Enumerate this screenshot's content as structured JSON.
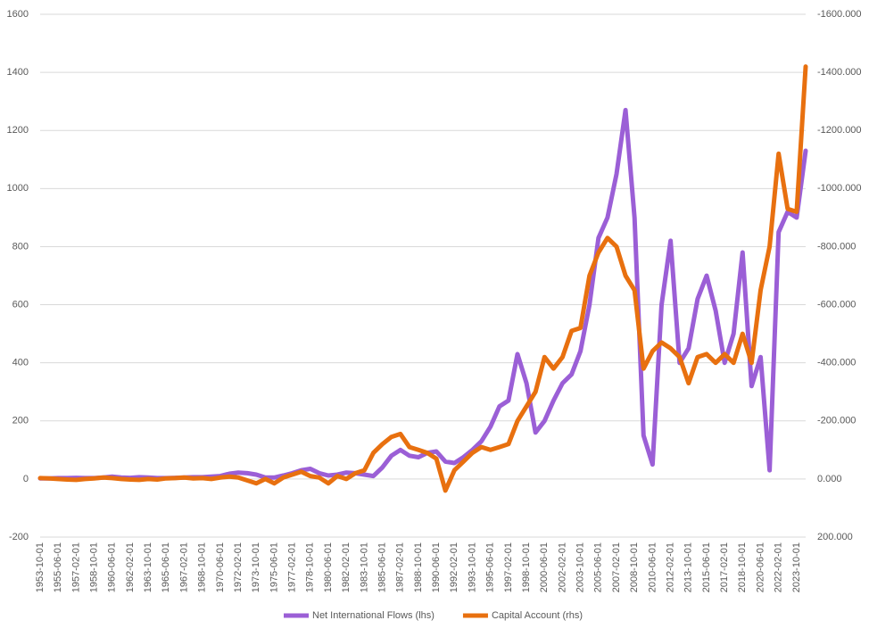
{
  "chart_data": {
    "type": "line",
    "categories": [
      "1953-10-01",
      null,
      "1955-06-01",
      null,
      "1957-02-01",
      null,
      "1958-10-01",
      null,
      "1960-06-01",
      null,
      "1962-02-01",
      null,
      "1963-10-01",
      null,
      "1965-06-01",
      null,
      "1967-02-01",
      null,
      "1968-10-01",
      null,
      "1970-06-01",
      null,
      "1972-02-01",
      null,
      "1973-10-01",
      null,
      "1975-06-01",
      null,
      "1977-02-01",
      null,
      "1978-10-01",
      null,
      "1980-06-01",
      null,
      "1982-02-01",
      null,
      "1983-10-01",
      null,
      "1985-06-01",
      null,
      "1987-02-01",
      null,
      "1988-10-01",
      null,
      "1990-06-01",
      null,
      "1992-02-01",
      null,
      "1993-10-01",
      null,
      "1995-06-01",
      null,
      "1997-02-01",
      null,
      "1998-10-01",
      null,
      "2000-06-01",
      null,
      "2002-02-01",
      null,
      "2003-10-01",
      null,
      "2005-06-01",
      null,
      "2007-02-01",
      null,
      "2008-10-01",
      null,
      "2010-06-01",
      null,
      "2012-02-01",
      null,
      "2013-10-01",
      null,
      "2015-06-01",
      null,
      "2017-02-01",
      null,
      "2018-10-01",
      null,
      "2020-06-01",
      null,
      "2022-02-01",
      null,
      "2023-10-01",
      null
    ],
    "series": [
      {
        "name": "Net International Flows (lhs)",
        "color": "#9b5fd6",
        "values": [
          2,
          2,
          3,
          3,
          4,
          3,
          3,
          5,
          8,
          5,
          4,
          6,
          5,
          3,
          3,
          4,
          5,
          6,
          6,
          8,
          10,
          18,
          22,
          20,
          15,
          5,
          5,
          12,
          20,
          30,
          35,
          20,
          12,
          15,
          22,
          20,
          15,
          10,
          40,
          80,
          100,
          80,
          75,
          90,
          95,
          60,
          55,
          75,
          100,
          130,
          180,
          250,
          270,
          430,
          330,
          160,
          200,
          270,
          330,
          360,
          440,
          600,
          830,
          900,
          1050,
          1270,
          900,
          150,
          50,
          600,
          820,
          400,
          450,
          620,
          700,
          580,
          400,
          500,
          780,
          320,
          420,
          30,
          850,
          920,
          900,
          1130
        ]
      },
      {
        "name": "Capital Account (rhs)",
        "color": "#e8700f",
        "axis": "y2",
        "values": [
          -3,
          -2,
          0,
          2,
          3,
          0,
          -2,
          -5,
          -3,
          0,
          2,
          3,
          0,
          2,
          -2,
          -3,
          -5,
          -2,
          -3,
          0,
          -5,
          -8,
          -5,
          5,
          15,
          0,
          15,
          -5,
          -15,
          -25,
          -10,
          -5,
          15,
          -10,
          0,
          -20,
          -30,
          -90,
          -120,
          -145,
          -155,
          -110,
          -100,
          -90,
          -70,
          40,
          -30,
          -60,
          -90,
          -110,
          -100,
          -110,
          -120,
          -200,
          -250,
          -300,
          -420,
          -380,
          -420,
          -510,
          -520,
          -700,
          -780,
          -830,
          -800,
          -700,
          -650,
          -380,
          -440,
          -470,
          -450,
          -420,
          -330,
          -420,
          -430,
          -400,
          -430,
          -400,
          -500,
          -400,
          -650,
          -800,
          -1120,
          -930,
          -920,
          -1420
        ]
      }
    ],
    "ylim": [
      -200,
      1600
    ],
    "yticks": [
      -200,
      0,
      200,
      400,
      600,
      800,
      1000,
      1200,
      1400,
      1600
    ],
    "y2lim": [
      200,
      -1600
    ],
    "y2ticks": [
      {
        "value": 200,
        "label": "200.000"
      },
      {
        "value": 0,
        "label": "0.000"
      },
      {
        "value": -200,
        "label": "-200.000"
      },
      {
        "value": -400,
        "label": "-400.000"
      },
      {
        "value": -600,
        "label": "-600.000"
      },
      {
        "value": -800,
        "label": "-800.000"
      },
      {
        "value": -1000,
        "label": "-1000.000"
      },
      {
        "value": -1200,
        "label": "-1200.000"
      },
      {
        "value": -1400,
        "label": "-1400.000"
      },
      {
        "value": -1600,
        "label": "-1600.000"
      }
    ],
    "grid": true,
    "legend": "bottom"
  }
}
